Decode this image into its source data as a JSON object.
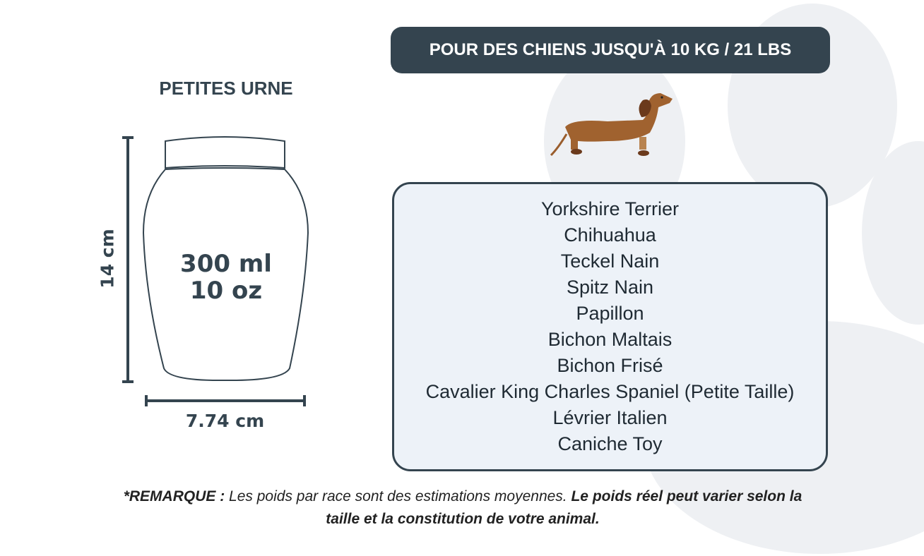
{
  "banner": "POUR DES CHIENS JUSQU'À 10 KG / 21 LBS",
  "product_title": "PETITES URNE",
  "capacity": {
    "ml": "300 ml",
    "oz": "10 oz"
  },
  "dimensions": {
    "height": "14 cm",
    "width": "7.74 cm"
  },
  "breeds": [
    "Yorkshire Terrier",
    "Chihuahua",
    "Teckel Nain",
    "Spitz Nain",
    "Papillon",
    "Bichon Maltais",
    "Bichon Frisé",
    "Cavalier King Charles Spaniel (Petite Taille)",
    "Lévrier Italien",
    "Caniche Toy"
  ],
  "note": {
    "label": "*REMARQUE :",
    "text": " Les poids par race sont des estimations moyennes. ",
    "emphasis": "Le poids réel peut varier selon la taille et la constitution de votre animal."
  },
  "colors": {
    "dark": "#34444f",
    "panel": "#edf2f8",
    "paw": "#eef0f3",
    "dog": "#a0622f"
  },
  "icons": {
    "background": "paw-print-icon",
    "dog": "dachshund-icon",
    "urn": "urn-icon"
  }
}
